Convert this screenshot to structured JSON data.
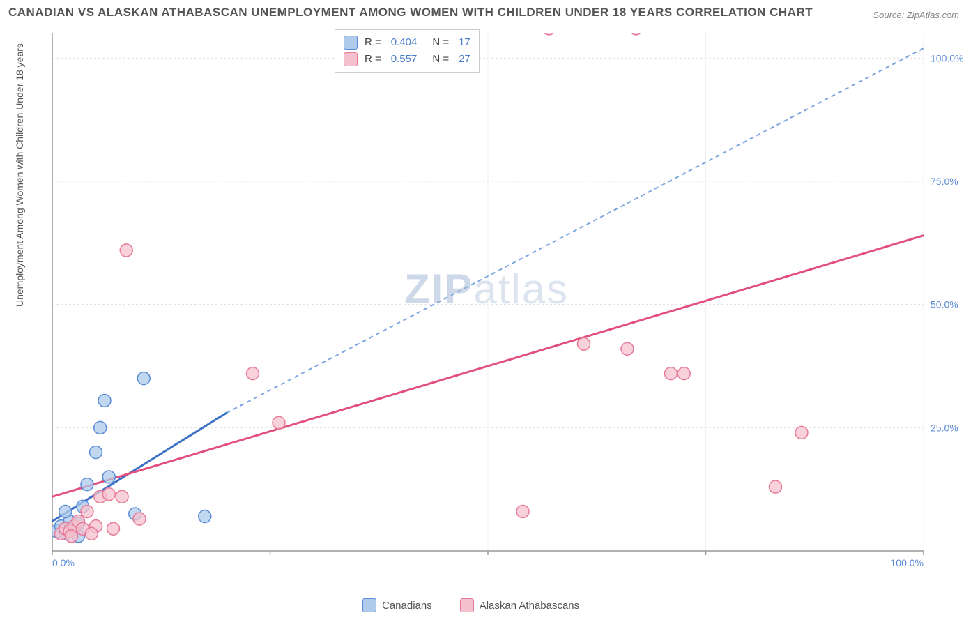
{
  "title": "CANADIAN VS ALASKAN ATHABASCAN UNEMPLOYMENT AMONG WOMEN WITH CHILDREN UNDER 18 YEARS CORRELATION CHART",
  "source_label": "Source: ZipAtlas.com",
  "ylabel": "Unemployment Among Women with Children Under 18 years",
  "watermark_bold": "ZIP",
  "watermark_light": "atlas",
  "chart": {
    "type": "scatter",
    "xlim": [
      0,
      100
    ],
    "ylim": [
      0,
      105
    ],
    "xtick_labels": [
      "0.0%",
      "100.0%"
    ],
    "xtick_positions": [
      0,
      100
    ],
    "ytick_labels": [
      "25.0%",
      "50.0%",
      "75.0%",
      "100.0%"
    ],
    "ytick_positions": [
      25,
      50,
      75,
      100
    ],
    "grid_y": [
      25,
      50,
      75,
      100
    ],
    "grid_x": [
      25,
      50,
      75,
      100
    ],
    "grid_color": "#e0e0e0",
    "axis_color": "#999",
    "background_color": "#ffffff",
    "marker_radius": 9,
    "marker_stroke_width": 1.5,
    "tick_label_color": "#5a8cd6",
    "tick_label_fontsize": 14,
    "series": [
      {
        "name": "Canadians",
        "fill": "#aecbeb",
        "stroke": "#5a8cd6",
        "r_value": "0.404",
        "n_value": "17",
        "points": [
          [
            0.5,
            4
          ],
          [
            1,
            5
          ],
          [
            1.5,
            3.5
          ],
          [
            2,
            6
          ],
          [
            2.5,
            4.5
          ],
          [
            3,
            5.5
          ],
          [
            3.5,
            9
          ],
          [
            4,
            13.5
          ],
          [
            5,
            20
          ],
          [
            5.5,
            25
          ],
          [
            6,
            30.5
          ],
          [
            6.5,
            15
          ],
          [
            9.5,
            7.5
          ],
          [
            10.5,
            35
          ],
          [
            17.5,
            7
          ],
          [
            3,
            3
          ],
          [
            1.5,
            8
          ]
        ],
        "trend": {
          "solid": {
            "x1": 0,
            "y1": 6,
            "x2": 20,
            "y2": 28,
            "color": "#3a6fc4",
            "width": 3
          },
          "dashed": {
            "x1": 20,
            "y1": 28,
            "x2": 100,
            "y2": 102,
            "color": "#7aa5de",
            "width": 2,
            "dash": "6,5"
          }
        }
      },
      {
        "name": "Alaskan Athabascans",
        "fill": "#f5c1ce",
        "stroke": "#e67a9b",
        "r_value": "0.557",
        "n_value": "27",
        "points": [
          [
            1,
            3.5
          ],
          [
            1.5,
            4.5
          ],
          [
            2,
            4
          ],
          [
            2.5,
            5
          ],
          [
            3,
            6
          ],
          [
            3.5,
            4.5
          ],
          [
            4,
            8
          ],
          [
            5,
            5
          ],
          [
            5.5,
            11
          ],
          [
            6.5,
            11.5
          ],
          [
            7,
            4.5
          ],
          [
            8,
            11
          ],
          [
            8.5,
            61
          ],
          [
            10,
            6.5
          ],
          [
            23,
            36
          ],
          [
            26,
            26
          ],
          [
            57,
            106
          ],
          [
            67,
            106
          ],
          [
            61,
            42
          ],
          [
            66,
            41
          ],
          [
            71,
            36
          ],
          [
            72.5,
            36
          ],
          [
            54,
            8
          ],
          [
            86,
            24
          ],
          [
            83,
            13
          ],
          [
            4.5,
            3.5
          ],
          [
            2.2,
            3
          ]
        ],
        "trend": {
          "solid": {
            "x1": 0,
            "y1": 11,
            "x2": 100,
            "y2": 64,
            "color": "#e24f7c",
            "width": 3
          }
        }
      }
    ]
  },
  "legend_bottom": [
    {
      "label": "Canadians",
      "fill": "#aecbeb",
      "stroke": "#5a8cd6"
    },
    {
      "label": "Alaskan Athabascans",
      "fill": "#f5c1ce",
      "stroke": "#e67a9b"
    }
  ]
}
